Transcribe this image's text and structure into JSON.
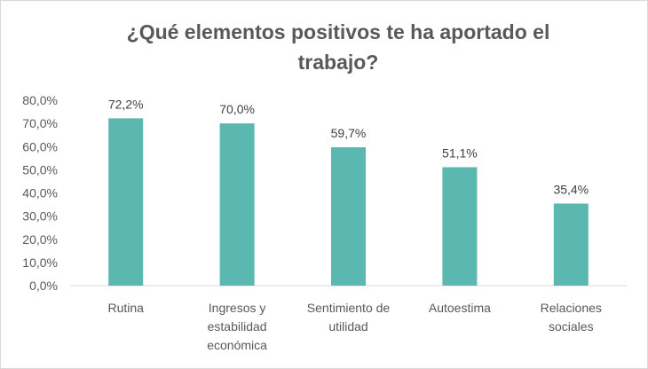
{
  "chart_data": {
    "type": "bar",
    "title": "¿Qué elementos positivos te ha aportado el\ntrabajo?",
    "categories": [
      [
        "Rutina"
      ],
      [
        "Ingresos y",
        "estabilidad",
        "económica"
      ],
      [
        "Sentimiento de",
        "utilidad"
      ],
      [
        "Autoestima"
      ],
      [
        "Relaciones",
        "sociales"
      ]
    ],
    "values": [
      72.2,
      70.0,
      59.7,
      51.1,
      35.4
    ],
    "data_labels": [
      "72,2%",
      "70,0%",
      "59,7%",
      "51,1%",
      "35,4%"
    ],
    "ylim": [
      0,
      80
    ],
    "yticks": [
      0,
      10,
      20,
      30,
      40,
      50,
      60,
      70,
      80
    ],
    "ytick_labels": [
      "0,0%",
      "10,0%",
      "20,0%",
      "30,0%",
      "40,0%",
      "50,0%",
      "60,0%",
      "70,0%",
      "80,0%"
    ],
    "xlabel": "",
    "ylabel": "",
    "grid": false,
    "legend": "none",
    "colors": {
      "bar": "#5BB8B0",
      "axis": "#d9d9d9",
      "text": "#595959"
    }
  }
}
